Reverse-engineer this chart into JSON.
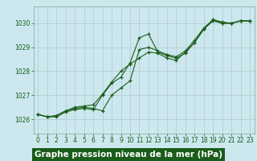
{
  "background_color": "#cce8ee",
  "plot_bg_color": "#cce8ee",
  "line_color": "#1a5c1a",
  "title": "Graphe pression niveau de la mer (hPa)",
  "title_bg": "#1a5c1a",
  "title_color": "#ffffff",
  "title_fontsize": 7.5,
  "tick_fontsize": 5.5,
  "xlim": [
    -0.5,
    23.5
  ],
  "ylim": [
    1025.4,
    1030.7
  ],
  "yticks": [
    1026,
    1027,
    1028,
    1029,
    1030
  ],
  "xticks": [
    0,
    1,
    2,
    3,
    4,
    5,
    6,
    7,
    8,
    9,
    10,
    11,
    12,
    13,
    14,
    15,
    16,
    17,
    18,
    19,
    20,
    21,
    22,
    23
  ],
  "series": [
    [
      1026.2,
      1026.1,
      1026.1,
      1026.3,
      1026.4,
      1026.45,
      1026.4,
      1027.0,
      1027.5,
      1027.75,
      1028.35,
      1029.4,
      1029.55,
      1028.8,
      1028.65,
      1028.55,
      1028.75,
      1029.2,
      1029.75,
      1030.15,
      1030.0,
      1030.0,
      1030.1,
      1030.1
    ],
    [
      1026.2,
      1026.1,
      1026.15,
      1026.35,
      1026.45,
      1026.5,
      1026.45,
      1026.35,
      1027.0,
      1027.3,
      1027.6,
      1028.9,
      1029.0,
      1028.85,
      1028.7,
      1028.6,
      1028.85,
      1029.3,
      1029.8,
      1030.15,
      1030.05,
      1030.0,
      1030.1,
      1030.1
    ],
    [
      1026.2,
      1026.1,
      1026.15,
      1026.35,
      1026.5,
      1026.55,
      1026.6,
      1027.05,
      1027.55,
      1028.0,
      1028.3,
      1028.55,
      1028.8,
      1028.75,
      1028.55,
      1028.45,
      1028.8,
      1029.2,
      1029.75,
      1030.1,
      1030.0,
      1030.0,
      1030.1,
      1030.1
    ]
  ]
}
